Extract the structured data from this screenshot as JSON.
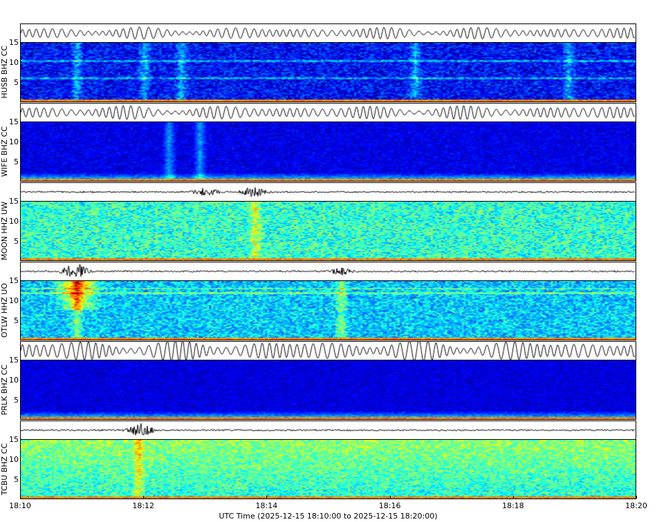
{
  "chart_data": {
    "type": "heatmap",
    "colormap": "jet",
    "xlabel": "UTC Time (2025-12-15 18:10:00 to 2025-12-15 18:20:00)",
    "x_ticks": [
      "18:10",
      "18:12",
      "18:14",
      "18:16",
      "18:18",
      "18:20"
    ],
    "xlim": [
      "18:10",
      "18:20"
    ],
    "y_ticks": [
      "5",
      "10",
      "15"
    ],
    "ylim": [
      0,
      15
    ],
    "stations": [
      {
        "label": "HUSB BHZ CC"
      },
      {
        "label": "WIFE BHZ CC"
      },
      {
        "label": "MOON HHZ UW"
      },
      {
        "label": "OTLW HHZ UO"
      },
      {
        "label": "PRLK BHZ CC"
      },
      {
        "label": "TCBU BHZ CC"
      }
    ]
  }
}
